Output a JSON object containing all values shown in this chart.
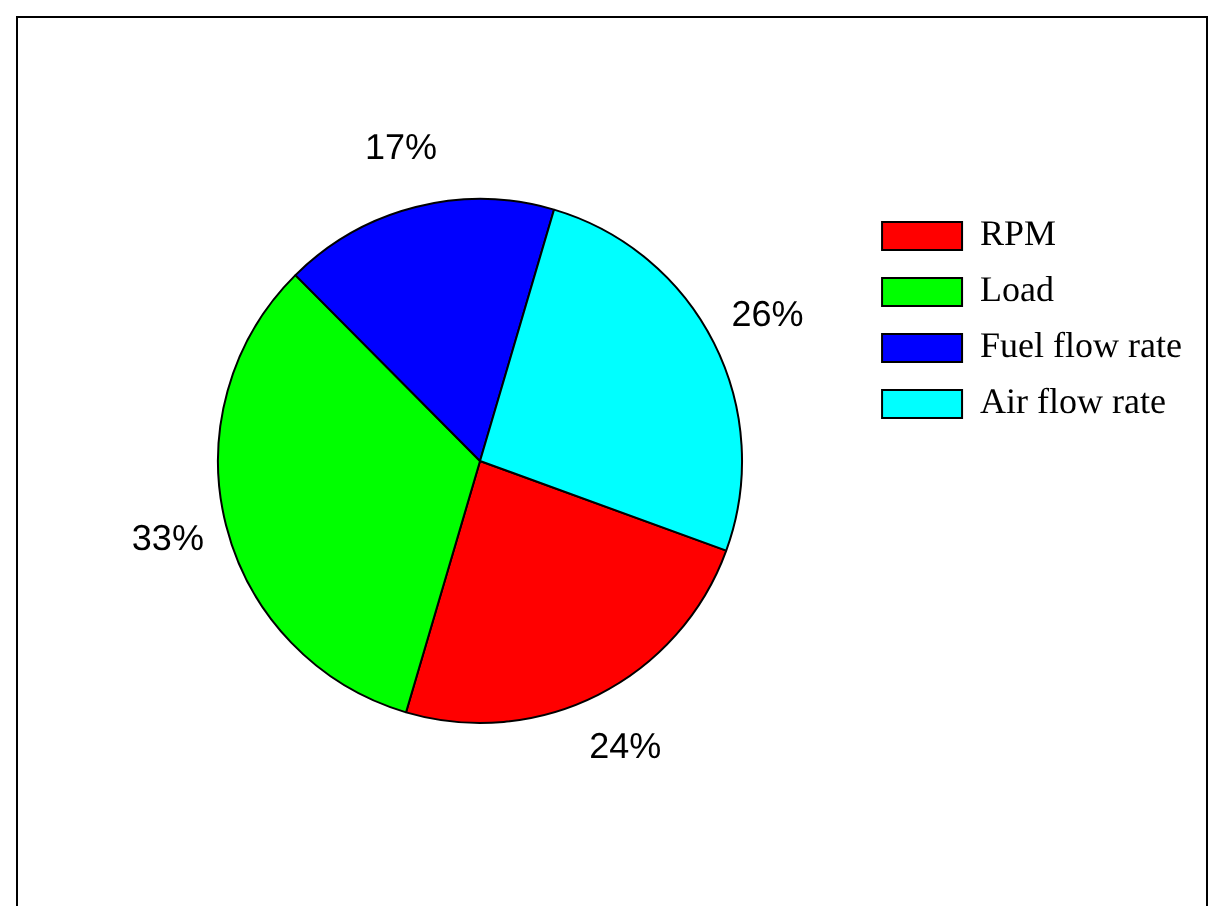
{
  "chart_data": {
    "type": "pie",
    "categories": [
      "RPM",
      "Load",
      "Fuel flow rate",
      "Air flow rate"
    ],
    "values": [
      24,
      33,
      17,
      26
    ],
    "colors": [
      "#ff0000",
      "#00ff00",
      "#0000ff",
      "#00ffff"
    ],
    "value_labels": [
      "24%",
      "33%",
      "17%",
      "26%"
    ],
    "legend": "top right"
  }
}
